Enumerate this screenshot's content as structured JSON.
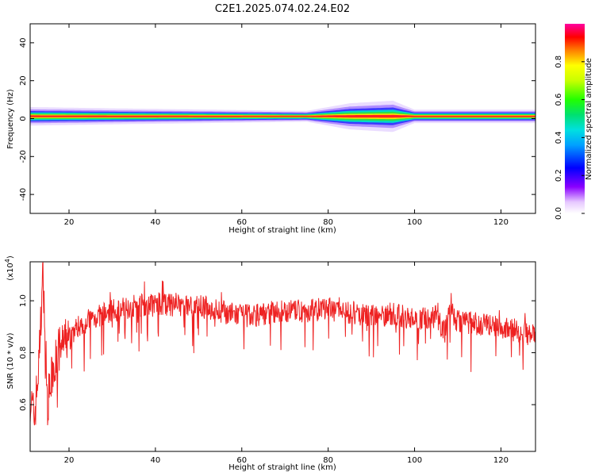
{
  "title": "C2E1.2025.074.02.24.E02",
  "chart_data": [
    {
      "type": "heatmap",
      "title": "C2E1.2025.074.02.24.E02",
      "xlabel": "Height of straight line (km)",
      "ylabel": "Frequency (Hz)",
      "xlim": [
        11,
        128
      ],
      "ylim": [
        -50,
        50
      ],
      "x_ticks": [
        20,
        40,
        60,
        80,
        100,
        120
      ],
      "y_ticks": [
        -40,
        -20,
        0,
        20,
        40
      ],
      "colorbar": {
        "label": "Normalized spectral amplitude",
        "range": [
          0,
          1
        ],
        "ticks": [
          "0.0",
          "0.2",
          "0.4",
          "0.6",
          "0.8"
        ]
      },
      "band": {
        "center_hz": 1.2,
        "description_values": [
          {
            "x": 11,
            "halfwidth_hz": 3.5
          },
          {
            "x": 30,
            "halfwidth_hz": 3.0
          },
          {
            "x": 75,
            "halfwidth_hz": 2.0
          },
          {
            "x": 85,
            "halfwidth_hz": 5.0
          },
          {
            "x": 95,
            "halfwidth_hz": 6.0
          },
          {
            "x": 100,
            "halfwidth_hz": 2.5
          },
          {
            "x": 128,
            "halfwidth_hz": 2.5
          }
        ]
      }
    },
    {
      "type": "line",
      "xlabel": "Height of straight line (km)",
      "ylabel": "SNR (10 * v/v)",
      "y_multiplier": "(x10",
      "y_multiplier_exp": "4",
      "y_multiplier_close": ")",
      "xlim": [
        11,
        128
      ],
      "ylim": [
        0.42,
        1.15
      ],
      "x_ticks": [
        20,
        40,
        60,
        80,
        100,
        120
      ],
      "y_ticks": [
        "0.6",
        "0.8",
        "1.0"
      ],
      "y_tick_values": [
        0.6,
        0.8,
        1.0
      ],
      "series": [
        {
          "color": "#ee2222",
          "x": [
            11,
            12,
            13,
            14,
            15,
            16,
            17,
            18,
            19,
            20,
            22,
            25,
            30,
            35,
            40,
            45,
            50,
            55,
            60,
            65,
            70,
            75,
            80,
            85,
            90,
            95,
            100,
            105,
            107,
            108,
            110,
            115,
            120,
            125,
            128
          ],
          "y": [
            0.62,
            0.55,
            0.75,
            1.12,
            0.6,
            0.7,
            0.78,
            0.82,
            0.84,
            0.86,
            0.9,
            0.93,
            0.96,
            0.98,
            0.99,
            0.98,
            0.98,
            0.96,
            0.94,
            0.95,
            0.96,
            0.96,
            0.97,
            0.95,
            0.94,
            0.95,
            0.93,
            0.94,
            0.88,
            0.97,
            0.92,
            0.91,
            0.9,
            0.88,
            0.86
          ]
        }
      ]
    }
  ]
}
